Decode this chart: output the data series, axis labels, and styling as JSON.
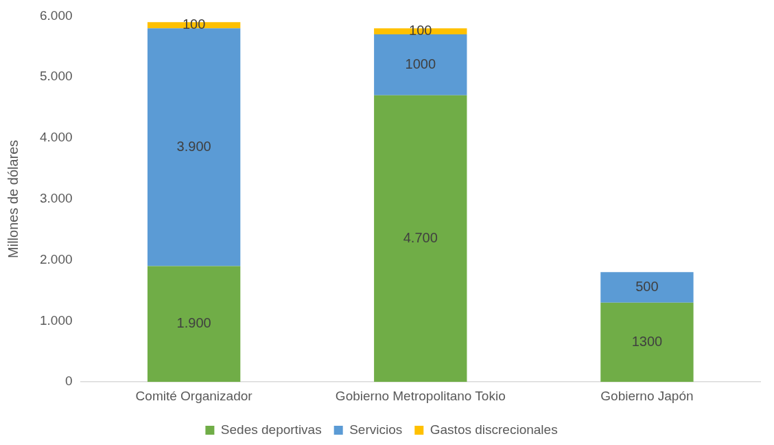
{
  "chart_data": {
    "type": "bar",
    "stacked": true,
    "ylabel": "Millones de dólares",
    "categories": [
      "Comité Organizador",
      "Gobierno Metropolitano Tokio",
      "Gobierno Japón"
    ],
    "series": [
      {
        "name": "Sedes deportivas",
        "color": "#70ad47",
        "values": [
          1900,
          4700,
          1300
        ],
        "value_labels": [
          "1.900",
          "4.700",
          "1300"
        ]
      },
      {
        "name": "Servicios",
        "color": "#5b9bd5",
        "values": [
          3900,
          1000,
          500
        ],
        "value_labels": [
          "3.900",
          "1000",
          "500"
        ]
      },
      {
        "name": "Gastos discrecionales",
        "color": "#ffc000",
        "values": [
          100,
          100,
          null
        ],
        "value_labels": [
          "100",
          "100",
          null
        ]
      }
    ],
    "ylim": [
      0,
      6000
    ],
    "yticks": [
      {
        "value": 0,
        "label": "0"
      },
      {
        "value": 1000,
        "label": "1.000"
      },
      {
        "value": 2000,
        "label": "2.000"
      },
      {
        "value": 3000,
        "label": "3.000"
      },
      {
        "value": 4000,
        "label": "4.000"
      },
      {
        "value": 5000,
        "label": "5.000"
      },
      {
        "value": 6000,
        "label": "6.000"
      }
    ],
    "grid": false,
    "legend": "bottom"
  }
}
